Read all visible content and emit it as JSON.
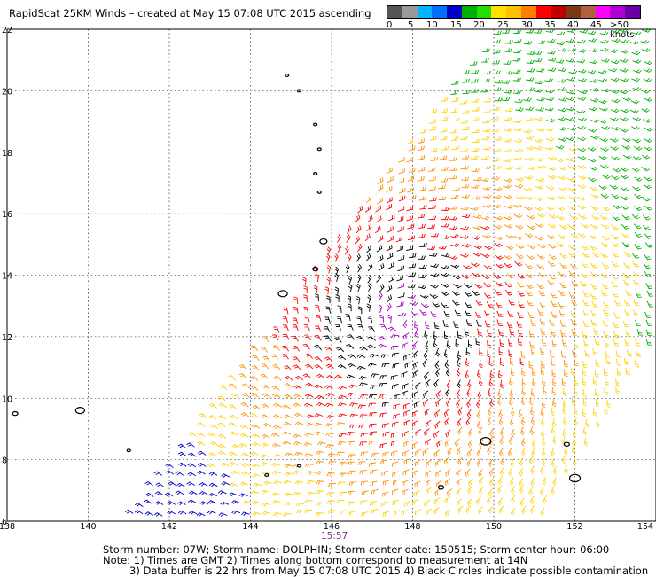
{
  "header": {
    "title": "RapidScat 25KM Winds – created at May 15 07:08 UTC 2015 ascending"
  },
  "legend": {
    "labels": [
      "0",
      "5",
      "10",
      "15",
      "20",
      "25",
      "30",
      "35",
      "40",
      "45",
      ">50 knots"
    ],
    "colors": [
      "#555555",
      "#999999",
      "#00b4ff",
      "#0070ff",
      "#0000c8",
      "#00b000",
      "#20e000",
      "#ffe000",
      "#ffc000",
      "#ff8000",
      "#ff0000",
      "#c00000",
      "#7a3a10",
      "#b06040",
      "#ff00ff",
      "#b000d0",
      "#6a00a0"
    ]
  },
  "map": {
    "lon_ticks": [
      "138",
      "140",
      "142",
      "144",
      "146",
      "148",
      "150",
      "152",
      "154"
    ],
    "lat_ticks": [
      "6",
      "8",
      "10",
      "12",
      "14",
      "16",
      "18",
      "20",
      "22"
    ],
    "time_label": "15:57",
    "colors": {
      "calm": "#0000c8",
      "light": "#00b000",
      "moderate": "#ffd000",
      "fresh": "#ff9000",
      "strong": "#ff0000",
      "gale": "#000000",
      "storm": "#a000c0"
    }
  },
  "footer": {
    "line1": "Storm number: 07W;  Storm name: DOLPHIN;  Storm center date: 150515;  Storm center hour: 06:00",
    "line2": "Note: 1) Times are GMT  2) Times along bottom correspond to measurement at 14N",
    "line3": "3) Data buffer is 22 hrs from May 15 07:08 UTC 2015  4) Black Circles indicate possible contamination"
  }
}
